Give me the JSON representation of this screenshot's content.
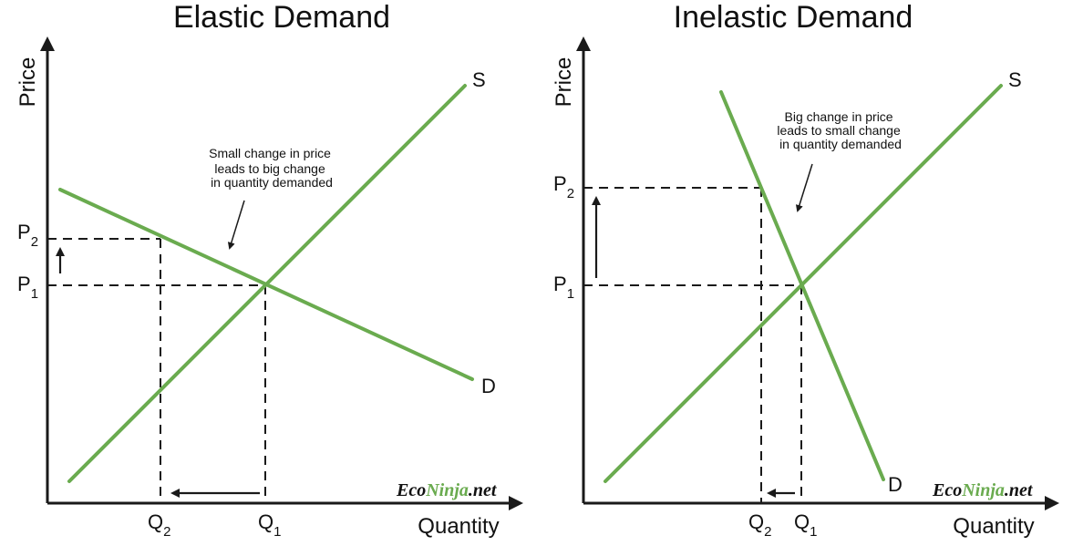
{
  "colors": {
    "curve": "#6aab4f",
    "axis": "#1a1a1a",
    "background": "#ffffff"
  },
  "panels": [
    {
      "title": "Elastic Demand",
      "y_axis_label": "Price",
      "x_axis_label": "Quantity",
      "supply_label": "S",
      "demand_label": "D",
      "p_high": {
        "main": "P",
        "sub": "2"
      },
      "p_low": {
        "main": "P",
        "sub": "1"
      },
      "q_a": {
        "main": "Q",
        "sub": "2"
      },
      "q_b": {
        "main": "Q",
        "sub": "1"
      },
      "annotation": [
        "Small change in price",
        "leads to big change",
        "in quantity demanded"
      ],
      "brand": {
        "part1": "Eco",
        "part2": "Ninja",
        "part3": ".net"
      }
    },
    {
      "title": "Inelastic Demand",
      "y_axis_label": "Price",
      "x_axis_label": "Quantity",
      "supply_label": "S",
      "demand_label": "D",
      "p_high": {
        "main": "P",
        "sub": "2"
      },
      "p_low": {
        "main": "P",
        "sub": "1"
      },
      "q_a": {
        "main": "Q",
        "sub": "2"
      },
      "q_b": {
        "main": "Q",
        "sub": "1"
      },
      "annotation": [
        "Big change in price",
        "leads to small change",
        "in quantity demanded"
      ],
      "brand": {
        "part1": "Eco",
        "part2": "Ninja",
        "part3": ".net"
      }
    }
  ]
}
